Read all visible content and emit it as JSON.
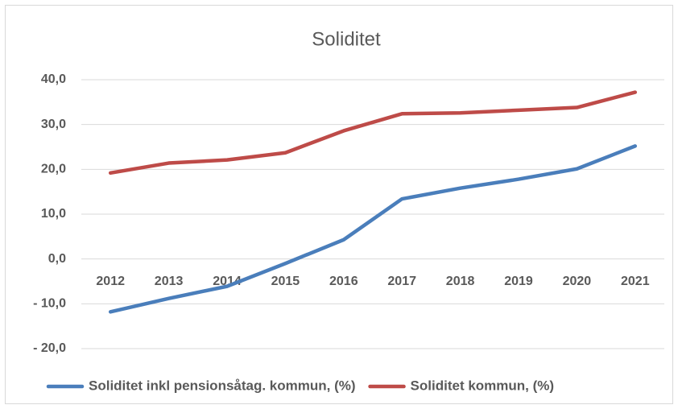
{
  "chart_data": {
    "type": "line",
    "title": "Soliditet",
    "categories": [
      "2012",
      "2013",
      "2014",
      "2015",
      "2016",
      "2017",
      "2018",
      "2019",
      "2020",
      "2021"
    ],
    "series": [
      {
        "name": "Soliditet inkl pensionsåtag. kommun, (%)",
        "color": "#4a7ebb",
        "values": [
          -11.8,
          -8.8,
          -6.1,
          -1.0,
          4.3,
          13.4,
          15.8,
          17.8,
          20.1,
          25.2
        ]
      },
      {
        "name": "Soliditet kommun, (%)",
        "color": "#be4b48",
        "values": [
          19.2,
          21.4,
          22.1,
          23.7,
          28.6,
          32.4,
          32.6,
          33.2,
          33.8,
          37.2
        ]
      }
    ],
    "ylim": [
      -20,
      40
    ],
    "yticks": [
      {
        "value": -20,
        "label": "- 20,0"
      },
      {
        "value": -10,
        "label": "- 10,0"
      },
      {
        "value": 0,
        "label": "0,0"
      },
      {
        "value": 10,
        "label": "10,0"
      },
      {
        "value": 20,
        "label": "20,0"
      },
      {
        "value": 30,
        "label": "30,0"
      },
      {
        "value": 40,
        "label": "40,0"
      }
    ],
    "grid": true,
    "legend": "bottom"
  }
}
